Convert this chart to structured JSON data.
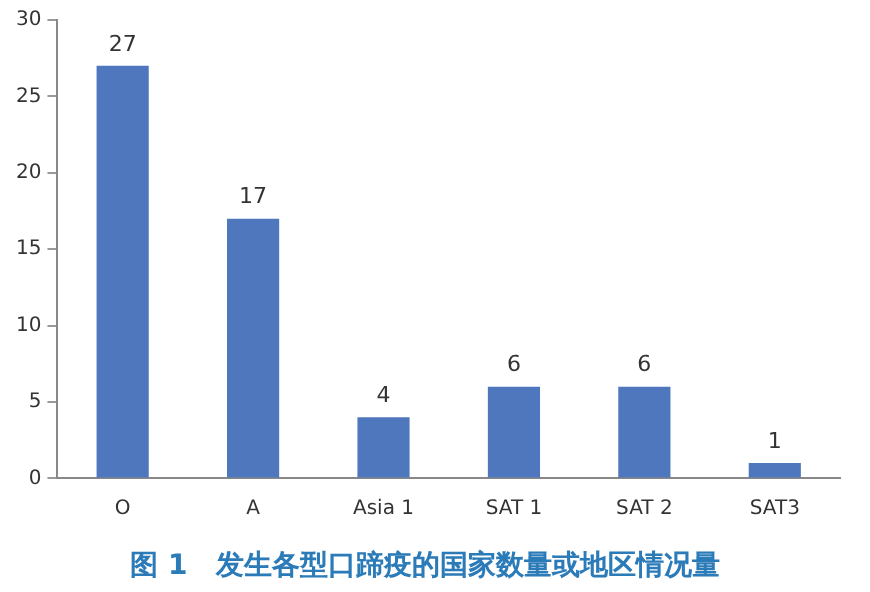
{
  "chart_data": {
    "type": "bar",
    "title": "图 1　发生各型口蹄疫的国家数量或地区情况量",
    "categories": [
      "O",
      "A",
      "Asia 1",
      "SAT 1",
      "SAT 2",
      "SAT3"
    ],
    "values": [
      27,
      17,
      4,
      6,
      6,
      1
    ],
    "color": "#4f77bd",
    "ylim": [
      0,
      30
    ],
    "yticks": [
      0,
      5,
      10,
      15,
      20,
      25,
      30
    ],
    "grid": false,
    "legend": false,
    "data_labels": true
  }
}
